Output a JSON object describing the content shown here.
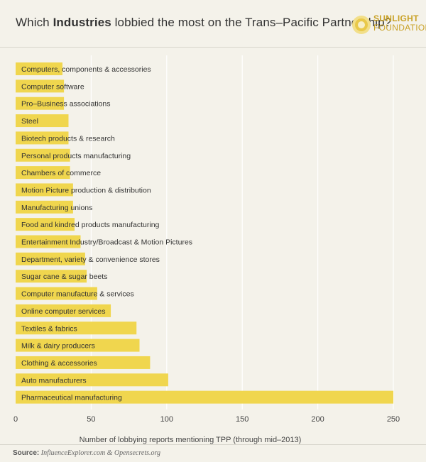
{
  "header": {
    "title_prefix": "Which ",
    "title_bold": "Industries",
    "title_suffix": " lobbied the most on the Trans–Pacific Partnership?",
    "logo_line1": "SUNLIGHT",
    "logo_line2": "FOUNDATION"
  },
  "footer": {
    "source_label": "Source:",
    "source_text": "InfluenceExplorer.com & Opensecrets.org"
  },
  "colors": {
    "bar": "#f0d64e",
    "background": "#f4f2ea",
    "grid": "#ffffff",
    "accent": "#c9a227"
  },
  "chart_data": {
    "type": "bar",
    "orientation": "horizontal",
    "title": "Which Industries lobbied the most on the Trans–Pacific Partnership?",
    "xlabel": "Number of lobbying reports mentioning TPP (through mid–2013)",
    "ylabel": "",
    "xlim": [
      0,
      250
    ],
    "xticks": [
      0,
      50,
      100,
      150,
      200,
      250
    ],
    "grid": true,
    "categories": [
      "Computers, components & accessories",
      "Computer software",
      "Pro–Business associations",
      "Steel",
      "Biotech products & research",
      "Personal products manufacturing",
      "Chambers of commerce",
      "Motion Picture production & distribution",
      "Manufacturing unions",
      "Food and kindred products manufacturing",
      "Entertainment Industry/Broadcast & Motion Pictures",
      "Department, variety & convenience stores",
      "Sugar cane & sugar beets",
      "Computer manufacture & services",
      "Online computer services",
      "Textiles & fabrics",
      "Milk & dairy producers",
      "Clothing & accessories",
      "Auto manufacturers",
      "Pharmaceutical manufacturing"
    ],
    "values": [
      31,
      32,
      32,
      35,
      35,
      36,
      36,
      38,
      38,
      39,
      43,
      46,
      47,
      54,
      63,
      80,
      82,
      89,
      101,
      250
    ]
  }
}
